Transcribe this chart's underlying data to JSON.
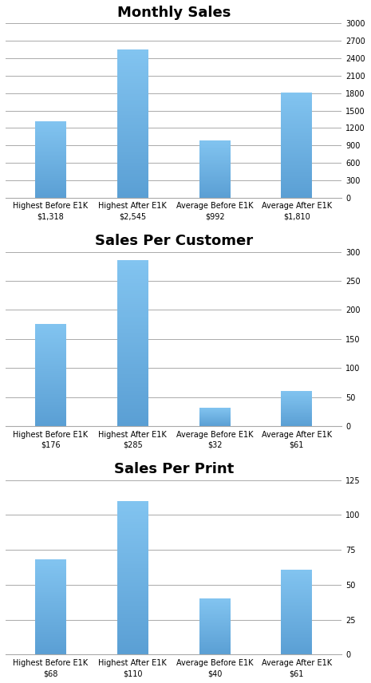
{
  "charts": [
    {
      "title": "Monthly Sales",
      "values": [
        1318,
        2545,
        992,
        1810
      ],
      "ylim": [
        0,
        3000
      ],
      "yticks": [
        0,
        300,
        600,
        900,
        1200,
        1500,
        1800,
        2100,
        2400,
        2700,
        3000
      ],
      "labels": [
        "Highest Before E1K\n$1,318",
        "Highest After E1K\n$2,545",
        "Average Before E1K\n$992",
        "Average After E1K\n$1,810"
      ]
    },
    {
      "title": "Sales Per Customer",
      "values": [
        176,
        285,
        32,
        61
      ],
      "ylim": [
        0,
        300
      ],
      "yticks": [
        0,
        50,
        100,
        150,
        200,
        250,
        300
      ],
      "labels": [
        "Highest Before E1K\n$176",
        "Highest After E1K\n$285",
        "Average Before E1K\n$32",
        "Average After E1K\n$61"
      ]
    },
    {
      "title": "Sales Per Print",
      "values": [
        68,
        110,
        40,
        61
      ],
      "ylim": [
        0,
        125
      ],
      "yticks": [
        0,
        25,
        50,
        75,
        100,
        125
      ],
      "labels": [
        "Highest Before E1K\n$68",
        "Highest After E1K\n$110",
        "Average Before E1K\n$40",
        "Average After E1K\n$61"
      ]
    }
  ],
  "bar_color_top": "#82C4F0",
  "bar_color_bottom": "#5A9FD4",
  "background_color": "#FFFFFF",
  "grid_color": "#AAAAAA",
  "title_fontsize": 13,
  "tick_fontsize": 7,
  "label_fontsize": 7,
  "bar_width": 0.38
}
